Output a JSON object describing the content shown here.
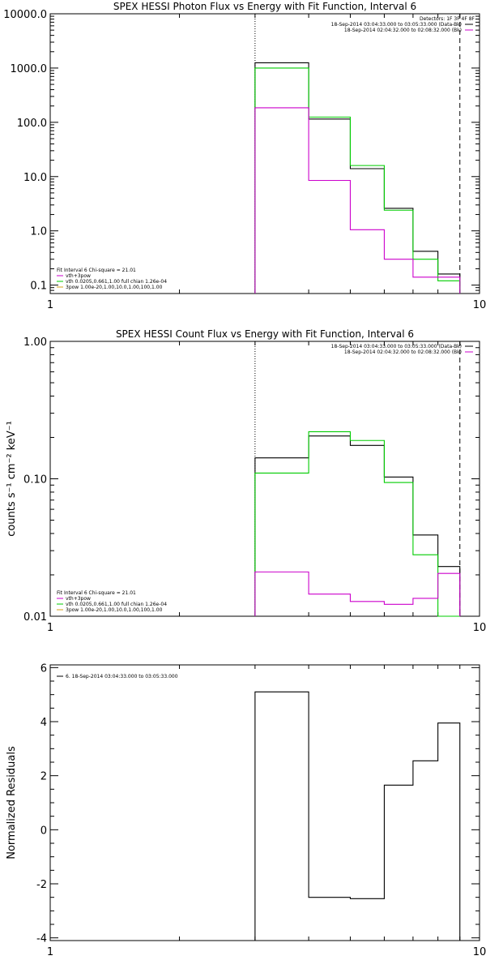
{
  "chart_data": [
    {
      "type": "line",
      "title": "SPEX HESSI Photon Flux vs Energy with Fit Function, Interval 6",
      "xlabel": "",
      "ylabel": "",
      "xscale": "log",
      "yscale": "log",
      "xlim": [
        1,
        10
      ],
      "ylim": [
        0.07,
        10000
      ],
      "x_tick_labels": [
        "1",
        "10"
      ],
      "y_tick_labels": [
        "0.1",
        "1.0",
        "10.0",
        "100.0",
        "1000.0",
        "10000.0"
      ],
      "y_tick_values": [
        0.1,
        1,
        10,
        100,
        1000,
        10000
      ],
      "bin_edges": [
        3.0,
        4.0,
        5.0,
        6.0,
        7.0,
        8.0,
        9.0
      ],
      "vertical_markers": [
        {
          "x": 3.0,
          "style": "dotted"
        },
        {
          "x": 9.0,
          "style": "dashed"
        }
      ],
      "series": [
        {
          "color": "#000000",
          "values": [
            1250,
            115,
            14,
            2.6,
            0.42,
            0.16
          ]
        },
        {
          "color": "#00cc00",
          "values": [
            1000,
            125,
            16,
            2.4,
            0.3,
            0.12
          ]
        },
        {
          "color": "#cc00cc",
          "values": [
            185,
            8.5,
            1.05,
            0.3,
            0.14,
            0.14
          ]
        }
      ],
      "legend_right": {
        "placement": "top-right",
        "header": "Detectors: 1F 3F 4F 8F",
        "entries": [
          {
            "text": "18-Sep-2014 03:04:33.000 to 03:05:33.000 (Data-Bk)",
            "color": "#000000"
          },
          {
            "text": "18-Sep-2014 02:04:32.000 to 02:08:32.000 (Bk)",
            "color": "#cc00cc"
          }
        ]
      },
      "legend_left": {
        "placement": "bottom-left",
        "header": "Fit Interval 6   Chi-square = 21.01",
        "entries": [
          {
            "text": "vth+3pow",
            "color": "#cc00cc"
          },
          {
            "text": "vth 0.0205,0.661,1.00  full chian 1.26e-04",
            "color": "#00cc00"
          },
          {
            "text": "3pow 1.00e-20,1.00,10.0,1.00,100,1.00",
            "color": "#d4a017"
          }
        ]
      }
    },
    {
      "type": "line",
      "title": "SPEX HESSI Count Flux vs Energy with Fit Function, Interval 6",
      "xlabel": "",
      "ylabel": "counts s⁻¹ cm⁻² keV⁻¹",
      "xscale": "log",
      "yscale": "log",
      "xlim": [
        1,
        10
      ],
      "ylim": [
        0.01,
        1.0
      ],
      "x_tick_labels": [
        "1",
        "10"
      ],
      "y_tick_labels": [
        "0.01",
        "0.10",
        "1.00"
      ],
      "y_tick_values": [
        0.01,
        0.1,
        1.0
      ],
      "bin_edges": [
        3.0,
        4.0,
        5.0,
        6.0,
        7.0,
        8.0,
        9.0
      ],
      "vertical_markers": [
        {
          "x": 3.0,
          "style": "dotted"
        },
        {
          "x": 9.0,
          "style": "dashed"
        }
      ],
      "series": [
        {
          "color": "#000000",
          "values": [
            0.142,
            0.205,
            0.175,
            0.103,
            0.039,
            0.023
          ]
        },
        {
          "color": "#00cc00",
          "values": [
            0.11,
            0.22,
            0.19,
            0.094,
            0.028,
            0.0
          ]
        },
        {
          "color": "#cc00cc",
          "values": [
            0.021,
            0.0145,
            0.0128,
            0.0122,
            0.0135,
            0.0205
          ]
        }
      ],
      "legend_right": {
        "placement": "top-right",
        "entries": [
          {
            "text": "18-Sep-2014 03:04:33.000 to 03:05:33.000 (Data-Bk)",
            "color": "#000000"
          },
          {
            "text": "18-Sep-2014 02:04:32.000 to 02:08:32.000 (Bk)",
            "color": "#cc00cc"
          }
        ]
      },
      "legend_left": {
        "placement": "bottom-left",
        "header": "Fit Interval 6   Chi-square = 21.01",
        "entries": [
          {
            "text": "vth+3pow",
            "color": "#cc00cc"
          },
          {
            "text": "vth 0.0205,0.661,1.00  full chian 1.26e-04",
            "color": "#00cc00"
          },
          {
            "text": "3pow 1.00e-20,1.00,10.0,1.00,100,1.00",
            "color": "#d4a017"
          }
        ]
      }
    },
    {
      "type": "line",
      "title": "",
      "xlabel": "",
      "ylabel": "Normalized Residuals",
      "xscale": "log",
      "yscale": "linear",
      "xlim": [
        1,
        10
      ],
      "ylim": [
        -4.1,
        6.1
      ],
      "x_tick_labels": [
        "1",
        "10"
      ],
      "y_tick_labels": [
        "-4",
        "-2",
        "0",
        "2",
        "4",
        "6"
      ],
      "y_tick_values": [
        -4,
        -2,
        0,
        2,
        4,
        6
      ],
      "bin_edges": [
        3.0,
        4.0,
        5.0,
        6.0,
        7.0,
        8.0,
        9.0
      ],
      "series": [
        {
          "color": "#000000",
          "values": [
            5.1,
            -2.5,
            -2.55,
            1.65,
            2.55,
            3.95
          ]
        }
      ],
      "legend_left": {
        "placement": "top-left",
        "entries": [
          {
            "text": "6. 18-Sep-2014 03:04:33.000 to 03:05:33.000",
            "color": "#000000"
          }
        ]
      }
    }
  ]
}
